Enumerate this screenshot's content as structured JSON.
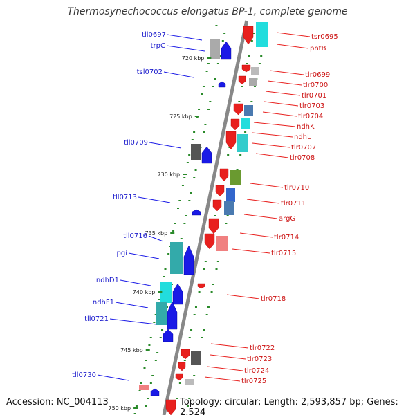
{
  "title": "Thermosynechococcus elongatus BP-1, complete genome",
  "accession": "Accession: NC_004113",
  "topology": "Topology: circular; Length: 2,593,857 bp; Genes: 2,524",
  "colors": {
    "forward": "#e8201e",
    "reverse": "#1a1ae6",
    "backbone": "#888888",
    "tick": "#2a8a2a"
  },
  "kbp_marks": [
    "720 kbp",
    "725 kbp",
    "730 kbp",
    "735 kbp",
    "740 kbp",
    "745 kbp",
    "750 kbp"
  ],
  "left_genes": [
    "tll0697",
    "trpC",
    "tsl0702",
    "tll0709",
    "tll0713",
    "tll0716",
    "pgi",
    "ndhD1",
    "ndhF1",
    "tll0721",
    "tll0730"
  ],
  "right_genes": [
    "tsr0695",
    "pntB",
    "tlr0699",
    "tlr0700",
    "tlr0701",
    "tlr0703",
    "tlr0704",
    "ndhK",
    "ndhL",
    "tlr0707",
    "tlr0708",
    "tlr0710",
    "tlr0711",
    "argG",
    "tlr0714",
    "tlr0715",
    "tlr0718",
    "tlr0722",
    "tlr0723",
    "tlr0724",
    "tlr0725"
  ]
}
